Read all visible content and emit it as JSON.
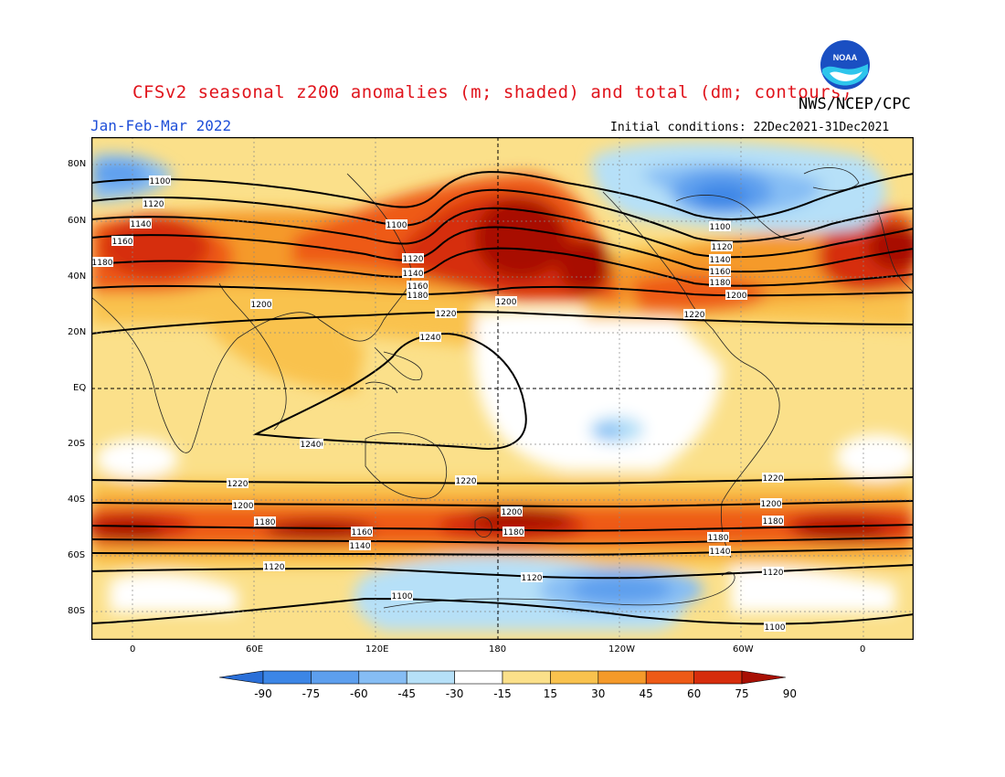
{
  "header": {
    "title": "CFSv2 seasonal z200 anomalies (m; shaded) and total (dm; contours)",
    "agency": "NWS/NCEP/CPC",
    "period": "Jan-Feb-Mar 2022",
    "initial_conditions": "Initial conditions: 22Dec2021-31Dec2021",
    "logo_text": "NOAA"
  },
  "map": {
    "lat_labels": [
      "80N",
      "60N",
      "40N",
      "20N",
      "EQ",
      "20S",
      "40S",
      "60S",
      "80S"
    ],
    "lon_labels": [
      "0",
      "60E",
      "120E",
      "180",
      "120W",
      "60W",
      "0"
    ],
    "contour_labels": [
      "1100",
      "1120",
      "1140",
      "1160",
      "1180",
      "1200",
      "1220",
      "1240"
    ]
  },
  "colorbar": {
    "labels": [
      "-90",
      "-75",
      "-60",
      "-45",
      "-30",
      "-15",
      "15",
      "30",
      "45",
      "60",
      "75",
      "90"
    ],
    "colors": [
      "#2a6fd8",
      "#3c86e6",
      "#5d9fee",
      "#86bdf4",
      "#b6e0f8",
      "#ffffff",
      "#fbe08a",
      "#f9c24e",
      "#f59a2a",
      "#ee5a16",
      "#d62d0c",
      "#a81004"
    ]
  }
}
